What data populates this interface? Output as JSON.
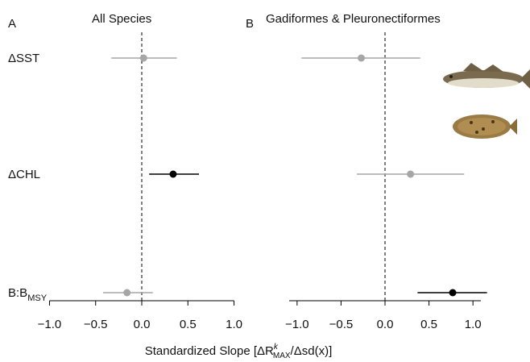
{
  "chart_data": [
    {
      "type": "forest",
      "panel": "A",
      "title": "All Species",
      "categories": [
        "ΔSST",
        "ΔCHL",
        {
          "text": "B:B",
          "subscript": "MSY"
        }
      ],
      "values": [
        0.02,
        0.34,
        -0.16
      ],
      "lower": [
        -0.33,
        0.08,
        -0.42
      ],
      "upper": [
        0.38,
        0.62,
        0.12
      ],
      "colors": [
        "#a6a6a6",
        "#000000",
        "#a6a6a6"
      ],
      "xlim": [
        -1.1,
        1.1
      ],
      "refline": 0,
      "xticks": [
        {
          "value": -1,
          "label": "−1.0"
        },
        {
          "value": -0.5,
          "label": "−0.5"
        },
        {
          "value": 0,
          "label": "0.0"
        },
        {
          "value": 0.5,
          "label": "0.5"
        },
        {
          "value": 1,
          "label": "1.0"
        }
      ]
    },
    {
      "type": "forest",
      "panel": "B",
      "title": "Gadiformes & Pleuronectiformes",
      "values": [
        -0.27,
        0.29,
        0.77
      ],
      "lower": [
        -0.95,
        -0.32,
        0.37
      ],
      "upper": [
        0.4,
        0.9,
        1.16
      ],
      "colors": [
        "#a6a6a6",
        "#a6a6a6",
        "#000000"
      ],
      "xlim": [
        -1.2,
        1.2
      ],
      "refline": 0,
      "xticks": [
        {
          "value": -1,
          "label": "−1.0"
        },
        {
          "value": -0.5,
          "label": "−0.5"
        },
        {
          "value": 0,
          "label": "0.0"
        },
        {
          "value": 0.5,
          "label": "0.5"
        },
        {
          "value": 1,
          "label": "1.0"
        }
      ]
    }
  ],
  "xlabel": {
    "before": "Standardized Slope [ΔR",
    "superscript": "k",
    "subscript": "MAX",
    "after": "/Δsd(x)]"
  }
}
